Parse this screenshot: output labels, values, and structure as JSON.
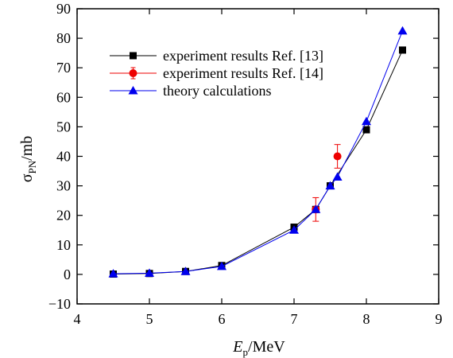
{
  "chart_data": {
    "type": "line",
    "x_axis": {
      "label_main": "E",
      "label_sub": "p",
      "label_unit": "/MeV",
      "min": 4,
      "max": 9,
      "ticks": [
        4,
        5,
        6,
        7,
        8,
        9
      ]
    },
    "y_axis": {
      "label_main": "σ",
      "label_sub": "PN",
      "label_unit": "/mb",
      "min": -10,
      "max": 90,
      "ticks": [
        -10,
        0,
        10,
        20,
        30,
        40,
        50,
        60,
        70,
        80,
        90
      ]
    },
    "grid": false,
    "legend_position": "top-left",
    "series": [
      {
        "name": "experiment results Ref. [13]",
        "color": "#000000",
        "marker": "square",
        "x": [
          4.5,
          5.0,
          5.5,
          6.0,
          7.0,
          7.3,
          7.5,
          8.0,
          8.5
        ],
        "y": [
          0.1,
          0.3,
          1.0,
          3.0,
          16.0,
          22.0,
          30.0,
          49.0,
          76.0
        ]
      },
      {
        "name": "experiment results Ref. [14]",
        "color": "#ee0000",
        "marker": "circle",
        "line": false,
        "x": [
          7.3,
          7.6
        ],
        "y": [
          22.0,
          40.0
        ],
        "error": [
          4.0,
          4.0
        ]
      },
      {
        "name": "theory calculations",
        "color": "#0000ee",
        "marker": "triangle",
        "x": [
          4.5,
          5.0,
          5.5,
          6.0,
          7.0,
          7.3,
          7.5,
          7.6,
          8.0,
          8.5
        ],
        "y": [
          0.2,
          0.4,
          1.0,
          2.7,
          15.0,
          22.0,
          30.0,
          33.0,
          51.8,
          82.5
        ]
      }
    ]
  }
}
